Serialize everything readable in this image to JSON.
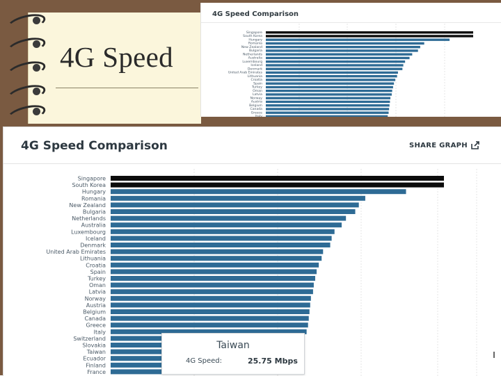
{
  "slide": {
    "title": "4G Speed"
  },
  "small_panel": {
    "title": "4G Speed Comparison"
  },
  "big_panel": {
    "title": "4G Speed Comparison",
    "share_label": "SHARE GRAPH"
  },
  "tooltip": {
    "country": "Taiwan",
    "label": "4G Speed:",
    "value": "25.75 Mbps"
  },
  "colors": {
    "highlight": "#0c0c0c",
    "bar": "#2e6b95",
    "notebook": "#7a5a41",
    "paper": "#fbf6dc"
  },
  "icons": [
    "share-icon",
    "binder-ring-icon"
  ],
  "chart_data": [
    {
      "type": "bar",
      "orientation": "horizontal",
      "title": "4G Speed Comparison",
      "categories": [
        "Singapore",
        "South Korea",
        "Hungary",
        "Romania",
        "New Zealand",
        "Bulgaria",
        "Netherlands",
        "Australia",
        "Luxembourg",
        "Iceland",
        "Denmark",
        "United Arab Emirates",
        "Lithuania",
        "Croatia",
        "Spain",
        "Turkey",
        "Oman",
        "Latvia",
        "Norway",
        "Austria",
        "Belgium",
        "Canada",
        "Greece",
        "Italy"
      ],
      "series": [
        {
          "values": [
            46.6,
            46.6,
            41.3,
            35.6,
            34.7,
            34.2,
            32.9,
            32.3,
            31.3,
            30.9,
            30.7,
            29.7,
            29.5,
            29.1,
            28.8,
            28.6,
            28.4,
            28.3,
            28.0,
            27.9,
            27.8,
            27.7,
            27.6,
            27.4
          ]
        }
      ],
      "highlighted": [
        "Singapore",
        "South Korea"
      ],
      "grid": true
    },
    {
      "type": "bar",
      "orientation": "horizontal",
      "title": "4G Speed Comparison",
      "categories": [
        "Singapore",
        "South Korea",
        "Hungary",
        "Romania",
        "New Zealand",
        "Bulgaria",
        "Netherlands",
        "Australia",
        "Luxembourg",
        "Iceland",
        "Denmark",
        "United Arab Emirates",
        "Lithuania",
        "Croatia",
        "Spain",
        "Turkey",
        "Oman",
        "Latvia",
        "Norway",
        "Austria",
        "Belgium",
        "Canada",
        "Greece",
        "Italy",
        "Switzerland",
        "Slovakia",
        "Taiwan",
        "Ecuador",
        "Finland",
        "France"
      ],
      "series": [
        {
          "values": [
            46.6,
            46.6,
            41.3,
            35.6,
            34.7,
            34.2,
            32.9,
            32.3,
            31.3,
            30.9,
            30.7,
            29.7,
            29.5,
            29.1,
            28.8,
            28.6,
            28.4,
            28.3,
            28.0,
            27.9,
            27.8,
            27.7,
            27.6,
            27.4,
            26.6,
            26.1,
            25.75,
            25.6,
            25.4,
            25.2
          ]
        }
      ],
      "highlighted": [
        "Singapore",
        "South Korea"
      ],
      "grid": true
    }
  ]
}
